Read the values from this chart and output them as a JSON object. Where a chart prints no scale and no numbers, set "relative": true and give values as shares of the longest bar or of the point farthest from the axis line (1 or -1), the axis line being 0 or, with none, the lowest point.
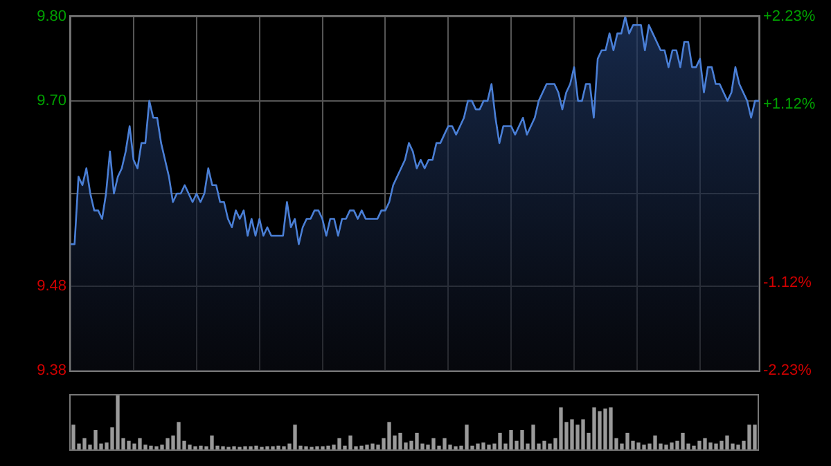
{
  "chart_data": [
    {
      "type": "area",
      "color": "#4a7fd6",
      "grid": true,
      "legend": false,
      "marker": "none",
      "tick_labels": "y",
      "categories": [
        null,
        null,
        null,
        null,
        null,
        null,
        null,
        null,
        null,
        null,
        null,
        null,
        null,
        null,
        null,
        null,
        null,
        null,
        null,
        null,
        null,
        null,
        null,
        null,
        null,
        null,
        null,
        null,
        null,
        null,
        null,
        null,
        null,
        null,
        null,
        null,
        null,
        null,
        null,
        null,
        null,
        null,
        null,
        null,
        null,
        null,
        null,
        null,
        null,
        null,
        null,
        null,
        null,
        null,
        null,
        null,
        null,
        null,
        null,
        null,
        null,
        null,
        null,
        null,
        null,
        null,
        null,
        null,
        null,
        null,
        null,
        null,
        null,
        null,
        null,
        null,
        null,
        null,
        null,
        null,
        null,
        null,
        null,
        null,
        null,
        null,
        null,
        null,
        null,
        null,
        null,
        null,
        null,
        null,
        null,
        null,
        null,
        null,
        null,
        null,
        null,
        null,
        null,
        null,
        null,
        null,
        null,
        null,
        null,
        null,
        null,
        null,
        null,
        null,
        null,
        null,
        null,
        null,
        null,
        null,
        null,
        null,
        null,
        null,
        null,
        null,
        null,
        null,
        null,
        null,
        null,
        null,
        null,
        null,
        null,
        null,
        null,
        null,
        null,
        null,
        null,
        null,
        null,
        null,
        null,
        null,
        null,
        null,
        null,
        null,
        null,
        null,
        null,
        null,
        null,
        null,
        null,
        null,
        null,
        null,
        null,
        null,
        null,
        null,
        null,
        null,
        null,
        null,
        null,
        null,
        null,
        null,
        null,
        null,
        null,
        null
      ],
      "ylim": [
        9.38,
        9.8
      ],
      "yticks": [
        {
          "value": 9.38,
          "label": "9.38"
        },
        {
          "value": 9.48,
          "label": "9.48"
        },
        {
          "value": 9.59,
          "label": null
        },
        {
          "value": 9.7,
          "label": "9.70"
        },
        {
          "value": 9.8,
          "label": "9.80"
        }
      ],
      "y2lim": [
        -2.23,
        2.23
      ],
      "y2ticks": [
        {
          "value": -2.23,
          "label": "-2.23%"
        },
        {
          "value": -1.12,
          "label": "-1.12%"
        },
        {
          "value": 0,
          "label": null
        },
        {
          "value": 1.12,
          "label": "+1.12%"
        },
        {
          "value": 2.23,
          "label": "+2.23%"
        }
      ],
      "values": [
        9.53,
        9.53,
        9.61,
        9.6,
        9.62,
        9.59,
        9.57,
        9.57,
        9.56,
        9.59,
        9.64,
        9.59,
        9.61,
        9.62,
        9.64,
        9.67,
        9.63,
        9.62,
        9.65,
        9.65,
        9.7,
        9.68,
        9.68,
        9.65,
        9.63,
        9.61,
        9.58,
        9.59,
        9.59,
        9.6,
        9.59,
        9.58,
        9.59,
        9.58,
        9.59,
        9.62,
        9.6,
        9.6,
        9.58,
        9.58,
        9.56,
        9.55,
        9.57,
        9.56,
        9.57,
        9.54,
        9.56,
        9.54,
        9.56,
        9.54,
        9.55,
        9.54,
        9.54,
        9.54,
        9.54,
        9.58,
        9.55,
        9.56,
        9.53,
        9.55,
        9.56,
        9.56,
        9.57,
        9.57,
        9.56,
        9.54,
        9.56,
        9.56,
        9.54,
        9.56,
        9.56,
        9.57,
        9.57,
        9.56,
        9.57,
        9.56,
        9.56,
        9.56,
        9.56,
        9.57,
        9.57,
        9.58,
        9.6,
        9.61,
        9.62,
        9.63,
        9.65,
        9.64,
        9.62,
        9.63,
        9.62,
        9.63,
        9.63,
        9.65,
        9.65,
        9.66,
        9.67,
        9.67,
        9.66,
        9.67,
        9.68,
        9.7,
        9.7,
        9.69,
        9.69,
        9.7,
        9.7,
        9.72,
        9.68,
        9.65,
        9.67,
        9.67,
        9.67,
        9.66,
        9.67,
        9.68,
        9.66,
        9.67,
        9.68,
        9.7,
        9.71,
        9.72,
        9.72,
        9.72,
        9.71,
        9.69,
        9.71,
        9.72,
        9.74,
        9.7,
        9.7,
        9.72,
        9.72,
        9.68,
        9.75,
        9.76,
        9.76,
        9.78,
        9.76,
        9.78,
        9.78,
        9.8,
        9.78,
        9.79,
        9.79,
        9.79,
        9.76,
        9.79,
        9.78,
        9.77,
        9.76,
        9.76,
        9.74,
        9.76,
        9.76,
        9.74,
        9.77,
        9.77,
        9.74,
        9.74,
        9.75,
        9.71,
        9.74,
        9.74,
        9.72,
        9.72,
        9.71,
        9.7,
        9.71,
        9.74,
        9.72,
        9.71,
        9.7,
        9.68,
        9.7,
        9.7
      ]
    },
    {
      "type": "bar",
      "relative": true,
      "color": "#9a9a9a",
      "legend": false,
      "categories": [
        null,
        null,
        null,
        null,
        null,
        null,
        null,
        null,
        null,
        null,
        null,
        null,
        null,
        null,
        null,
        null,
        null,
        null,
        null,
        null,
        null,
        null,
        null,
        null,
        null,
        null,
        null,
        null,
        null,
        null,
        null,
        null,
        null,
        null,
        null,
        null,
        null,
        null,
        null,
        null,
        null,
        null,
        null,
        null,
        null,
        null,
        null,
        null,
        null,
        null,
        null,
        null,
        null,
        null,
        null,
        null,
        null,
        null,
        null,
        null,
        null,
        null,
        null,
        null,
        null,
        null,
        null,
        null,
        null,
        null,
        null,
        null,
        null,
        null,
        null,
        null,
        null,
        null,
        null,
        null,
        null,
        null,
        null,
        null,
        null,
        null,
        null,
        null,
        null,
        null,
        null,
        null,
        null,
        null,
        null,
        null,
        null,
        null,
        null,
        null,
        null,
        null,
        null,
        null,
        null,
        null,
        null,
        null,
        null,
        null,
        null,
        null,
        null,
        null,
        null,
        null,
        null,
        null,
        null,
        null,
        null,
        null,
        null,
        null
      ],
      "values": [
        0.45,
        0.1,
        0.2,
        0.08,
        0.35,
        0.1,
        0.12,
        0.4,
        1,
        0.2,
        0.15,
        0.1,
        0.2,
        0.08,
        0.06,
        0.05,
        0.08,
        0.2,
        0.25,
        0.5,
        0.15,
        0.08,
        0.05,
        0.06,
        0.05,
        0.25,
        0.06,
        0.05,
        0.04,
        0.05,
        0.04,
        0.05,
        0.05,
        0.06,
        0.04,
        0.05,
        0.05,
        0.06,
        0.05,
        0.1,
        0.45,
        0.06,
        0.05,
        0.04,
        0.05,
        0.05,
        0.06,
        0.08,
        0.2,
        0.06,
        0.25,
        0.05,
        0.06,
        0.08,
        0.1,
        0.08,
        0.2,
        0.5,
        0.25,
        0.3,
        0.12,
        0.15,
        0.3,
        0.1,
        0.08,
        0.2,
        0.06,
        0.2,
        0.08,
        0.05,
        0.06,
        0.45,
        0.06,
        0.1,
        0.12,
        0.08,
        0.1,
        0.3,
        0.1,
        0.35,
        0.15,
        0.35,
        0.1,
        0.45,
        0.1,
        0.15,
        0.1,
        0.2,
        0.77,
        0.5,
        0.55,
        0.45,
        0.55,
        0.3,
        0.77,
        0.7,
        0.75,
        0.77,
        0.2,
        0.1,
        0.3,
        0.15,
        0.12,
        0.08,
        0.1,
        0.25,
        0.1,
        0.08,
        0.12,
        0.15,
        0.3,
        0.1,
        0.06,
        0.15,
        0.2,
        0.12,
        0.1,
        0.15,
        0.25,
        0.1,
        0.08,
        0.15,
        0.45,
        0.45
      ]
    }
  ]
}
